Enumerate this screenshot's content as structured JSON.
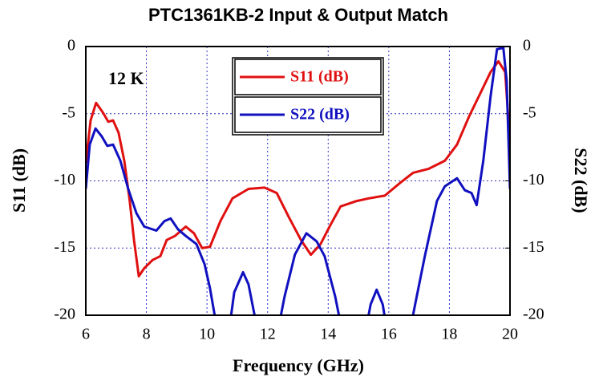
{
  "chart_data": {
    "type": "line",
    "title": "PTC1361KB-2 Input & Output Match",
    "x_label": "Frequency (GHz)",
    "y_label": "S11 (dB)",
    "y2_label": "S22 (dB)",
    "annotation": "12 K",
    "xlim": [
      6,
      20
    ],
    "xticks": [
      6,
      8,
      10,
      12,
      14,
      16,
      18,
      20
    ],
    "ylim": [
      -20,
      0
    ],
    "yticks": [
      0,
      -5,
      -10,
      -15,
      -20
    ],
    "y2lim": [
      -20,
      0
    ],
    "y2ticks": [
      0,
      -5,
      -10,
      -15,
      -20
    ],
    "grid": true,
    "series": [
      {
        "name": "S11 (dB)",
        "color": "#e01010",
        "x": [
          6.0,
          6.16,
          6.34,
          6.56,
          6.74,
          6.9,
          7.08,
          7.27,
          7.45,
          7.59,
          7.75,
          7.93,
          8.2,
          8.46,
          8.67,
          8.94,
          9.3,
          9.57,
          9.84,
          10.1,
          10.44,
          10.84,
          11.37,
          11.9,
          12.3,
          12.7,
          13.1,
          13.43,
          13.75,
          14.07,
          14.41,
          14.94,
          15.34,
          15.87,
          16.4,
          16.8,
          17.32,
          17.85,
          18.25,
          18.65,
          19.04,
          19.36,
          19.62,
          19.84,
          20.0
        ],
        "values": [
          -8.7,
          -5.5,
          -4.2,
          -4.9,
          -5.6,
          -5.5,
          -6.4,
          -8.5,
          -11.5,
          -14.4,
          -17.1,
          -16.5,
          -15.9,
          -15.6,
          -14.4,
          -14.1,
          -13.4,
          -13.9,
          -15.0,
          -14.9,
          -13.0,
          -11.3,
          -10.6,
          -10.5,
          -10.9,
          -12.7,
          -14.4,
          -15.5,
          -14.7,
          -13.3,
          -11.9,
          -11.5,
          -11.3,
          -11.1,
          -10.1,
          -9.4,
          -9.1,
          -8.5,
          -7.3,
          -5.2,
          -3.4,
          -1.9,
          -1.1,
          -1.9,
          -7.2
        ]
      },
      {
        "name": "S22 (dB)",
        "color": "#1010c0",
        "axis": "y2",
        "x": [
          6.0,
          6.13,
          6.32,
          6.53,
          6.71,
          6.9,
          7.14,
          7.4,
          7.67,
          7.93,
          8.33,
          8.59,
          8.8,
          9.04,
          9.3,
          9.65,
          9.92,
          10.1,
          10.26,
          10.37,
          10.7,
          10.9,
          11.19,
          11.37,
          11.58,
          11.7,
          12.3,
          12.56,
          12.9,
          13.28,
          13.62,
          13.88,
          14.23,
          14.39,
          14.5,
          15.2,
          15.4,
          15.6,
          15.8,
          15.97,
          16.66,
          16.87,
          17.19,
          17.59,
          17.85,
          18.25,
          18.51,
          18.73,
          18.9,
          19.12,
          19.36,
          19.57,
          19.78,
          19.89,
          20.0
        ],
        "values": [
          -10.6,
          -7.3,
          -6.1,
          -6.7,
          -7.4,
          -7.3,
          -8.5,
          -10.6,
          -12.4,
          -13.4,
          -13.7,
          -13.0,
          -12.8,
          -13.6,
          -14.1,
          -14.7,
          -16.2,
          -18.0,
          -20.1,
          -21.6,
          -21.6,
          -18.3,
          -16.8,
          -17.7,
          -20.1,
          -21.6,
          -21.6,
          -18.6,
          -15.5,
          -13.9,
          -14.5,
          -15.6,
          -18.6,
          -20.4,
          -21.6,
          -21.6,
          -19.2,
          -18.1,
          -19.2,
          -21.6,
          -21.6,
          -19.2,
          -15.6,
          -11.5,
          -10.4,
          -9.8,
          -10.7,
          -10.9,
          -11.8,
          -8.5,
          -3.7,
          -0.2,
          -0.1,
          -2.5,
          -10.6
        ]
      }
    ]
  }
}
